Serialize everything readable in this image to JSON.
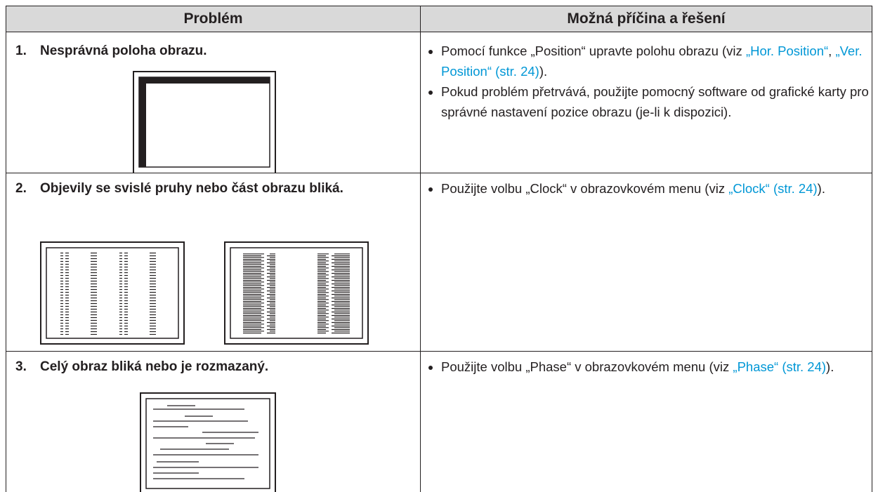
{
  "table": {
    "header": [
      "Problém",
      "Možná příčina a řešení"
    ],
    "rows": [
      {
        "number": "1.",
        "problem": "Nesprávná poloha obrazu.",
        "solutions": [
          [
            {
              "text": "Pomocí funkce „Position“ upravte polohu obrazu (viz ",
              "link": false
            },
            {
              "text": "„Hor. Position“",
              "link": true
            },
            {
              "text": ", ",
              "link": false
            },
            {
              "text": "„Ver. Position“ (str. 24)",
              "link": true
            },
            {
              "text": ").",
              "link": false
            }
          ],
          [
            {
              "text": "Pokud problém přetrvává, použijte pomocný software od grafické karty pro správné nastavení pozice obrazu (je-li k dispozici).",
              "link": false
            }
          ]
        ]
      },
      {
        "number": "2.",
        "problem": "Objevily se svislé pruhy nebo část obrazu bliká.",
        "solutions": [
          [
            {
              "text": "Použijte volbu „Clock“ v obrazovkovém menu (viz ",
              "link": false
            },
            {
              "text": "„Clock“ (str. 24)",
              "link": true
            },
            {
              "text": ").",
              "link": false
            }
          ]
        ]
      },
      {
        "number": "3.",
        "problem": "Celý obraz bliká nebo je rozmazaný.",
        "solutions": [
          [
            {
              "text": "Použijte volbu „Phase“ v obrazovkovém menu (viz ",
              "link": false
            },
            {
              "text": "„Phase“ (str. 24)",
              "link": true
            },
            {
              "text": ").",
              "link": false
            }
          ]
        ]
      }
    ]
  }
}
